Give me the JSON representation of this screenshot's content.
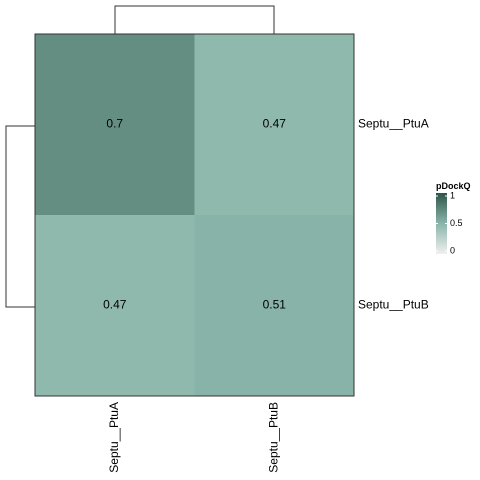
{
  "chart_data": {
    "type": "heatmap",
    "rows": [
      "Septu__PtuA",
      "Septu__PtuB"
    ],
    "columns": [
      "Septu__PtuA",
      "Septu__PtuB"
    ],
    "values": [
      [
        0.7,
        0.47
      ],
      [
        0.47,
        0.51
      ]
    ],
    "cell_labels": [
      [
        "0.7",
        "0.47"
      ],
      [
        "0.47",
        "0.51"
      ]
    ],
    "value_range": [
      0,
      1
    ],
    "legend": {
      "title": "pDockQ",
      "ticks": [
        "1",
        "0.5",
        "0"
      ],
      "tick_values": [
        1,
        0.5,
        0
      ],
      "placement": "right"
    },
    "row_dendrogram": "left",
    "column_dendrogram": "top",
    "colors": {
      "low": "#f0f0f0",
      "mid": "#8ab5aa",
      "high": "#2e5448",
      "border": "#333333",
      "dendrogram": "#333333"
    }
  }
}
